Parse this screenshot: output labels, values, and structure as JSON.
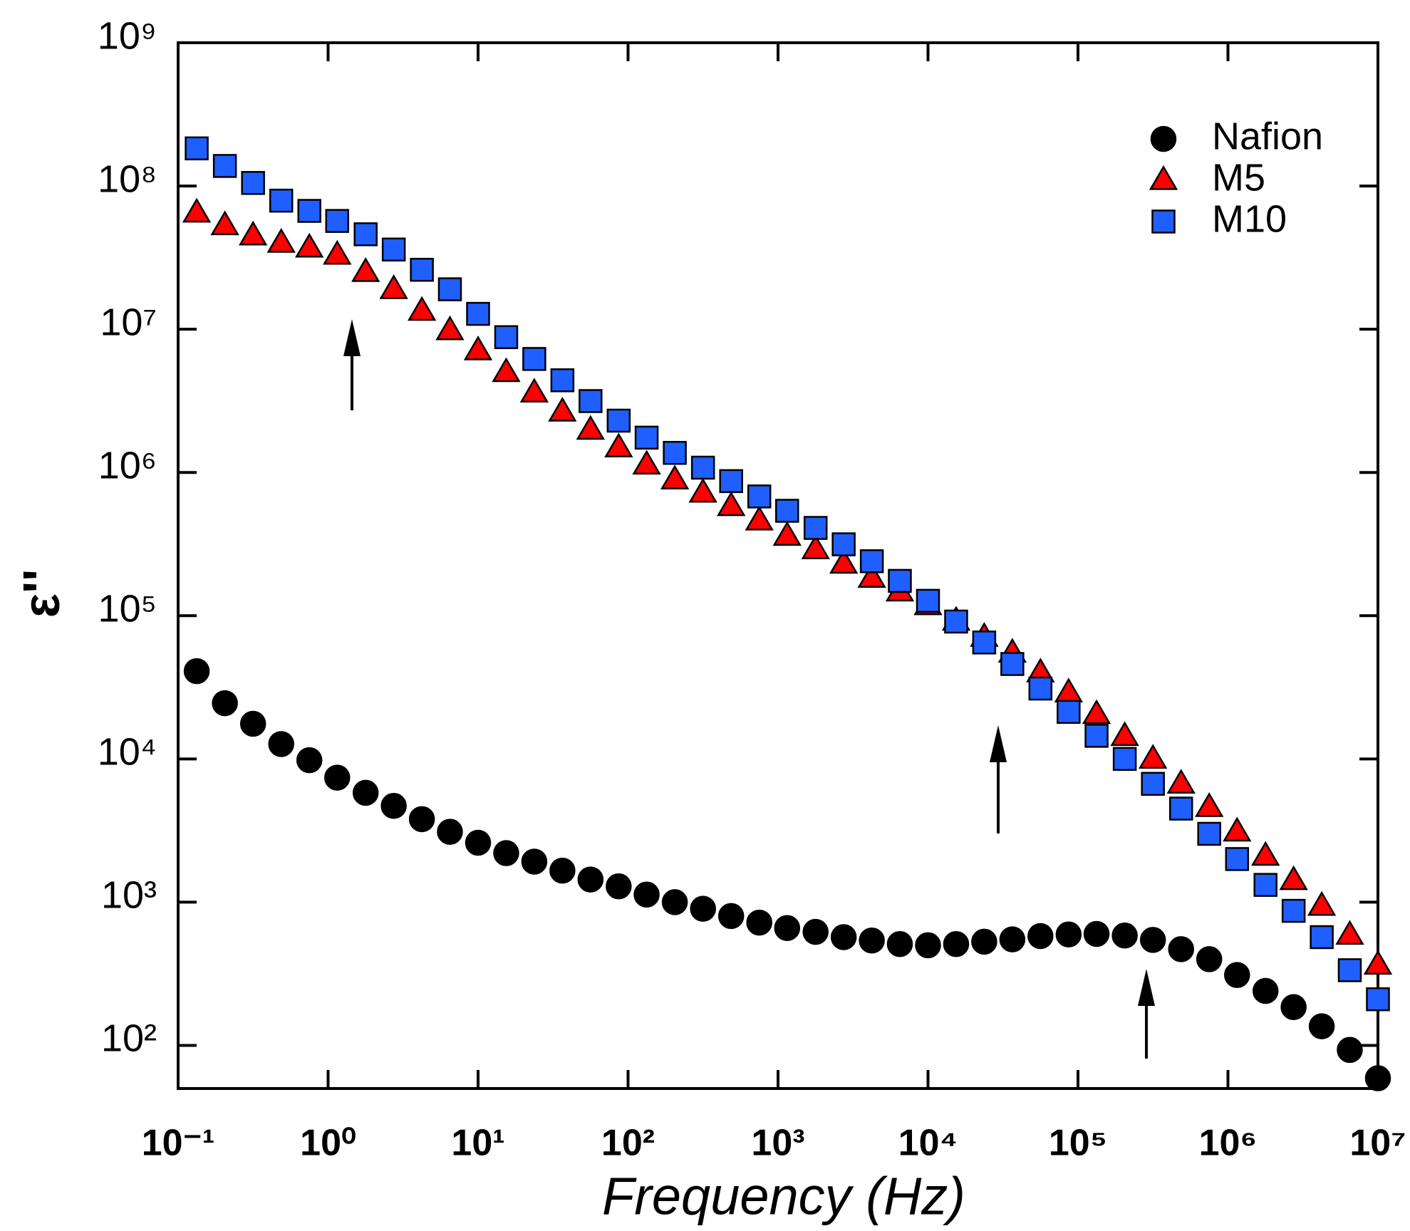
{
  "chart_data": {
    "type": "scatter",
    "xlabel": "Frequency (Hz)",
    "ylabel": "ε''",
    "x": [
      0.133,
      0.205,
      0.316,
      0.487,
      0.75,
      1.15,
      1.78,
      2.74,
      4.22,
      6.49,
      10,
      15.4,
      23.7,
      36.5,
      56.2,
      86.6,
      133,
      205,
      316,
      487,
      750,
      1150,
      1780,
      2740,
      4220,
      6490,
      10000,
      15400,
      23700,
      36500,
      56200,
      86600,
      133000,
      205000,
      316000,
      487000,
      750000,
      1150000,
      1780000,
      2740000,
      4220000,
      6490000,
      10000000
    ],
    "series": [
      {
        "name": "Nafion",
        "color": "#000000",
        "marker": "circle",
        "values": [
          41000,
          24500,
          17600,
          12700,
          9800,
          7400,
          5800,
          4700,
          3800,
          3100,
          2600,
          2200,
          1920,
          1660,
          1440,
          1290,
          1130,
          1000,
          900,
          800,
          720,
          660,
          620,
          570,
          540,
          510,
          500,
          510,
          530,
          550,
          580,
          595,
          600,
          585,
          545,
          470,
          400,
          310,
          240,
          185,
          136,
          93,
          59
        ]
      },
      {
        "name": "M5",
        "color": "#ff0000",
        "marker": "triangle",
        "values": [
          65000000,
          53000000,
          45000000,
          40000000,
          37000000,
          33000000,
          25000000,
          19000000,
          13400000,
          9800000,
          7100000,
          5000000,
          3600000,
          2650000,
          1980000,
          1490000,
          1130000,
          890000,
          720000,
          580000,
          460000,
          360000,
          290000,
          230000,
          183000,
          147000,
          118000,
          92000,
          71000,
          55000,
          40000,
          29000,
          20500,
          14400,
          10000,
          6700,
          4600,
          3100,
          2100,
          1420,
          940,
          590,
          365
        ]
      },
      {
        "name": "M10",
        "color": "#1f5fff",
        "marker": "square",
        "values": [
          183000000,
          138000000,
          105000000,
          79000000,
          67000000,
          57000000,
          46000000,
          36000000,
          26000000,
          19000000,
          12800000,
          8800000,
          6200000,
          4400000,
          3150000,
          2300000,
          1750000,
          1370000,
          1080000,
          870000,
          680000,
          540000,
          410000,
          315000,
          240000,
          175000,
          127000,
          91000,
          65000,
          46000,
          31000,
          21300,
          14500,
          10000,
          6700,
          4500,
          3000,
          2000,
          1320,
          870,
          570,
          335,
          210
        ]
      }
    ],
    "xlim": [
      0.1,
      10000000
    ],
    "ylim": [
      50,
      1000000000
    ],
    "log_x": true,
    "log_y": true,
    "legend": "upper right",
    "xticks": [
      {
        "value": 0.1,
        "label": "10⁻¹"
      },
      {
        "value": 1,
        "label": "10⁰"
      },
      {
        "value": 10,
        "label": "10¹"
      },
      {
        "value": 100,
        "label": "10²"
      },
      {
        "value": 1000,
        "label": "10³"
      },
      {
        "value": 10000,
        "label": "10⁴"
      },
      {
        "value": 100000,
        "label": "10⁵"
      },
      {
        "value": 1000000,
        "label": "10⁶"
      },
      {
        "value": 10000000,
        "label": "10⁷"
      }
    ],
    "yticks": [
      {
        "value": 100,
        "label": "10²"
      },
      {
        "value": 1000,
        "label": "10³"
      },
      {
        "value": 10000,
        "label": "10⁴"
      },
      {
        "value": 100000,
        "label": "10⁵"
      },
      {
        "value": 1000000,
        "label": "10⁶"
      },
      {
        "value": 10000000,
        "label": "10⁷"
      },
      {
        "value": 100000000,
        "label": "10⁸"
      },
      {
        "value": 1000000000,
        "label": "10⁹"
      }
    ]
  }
}
